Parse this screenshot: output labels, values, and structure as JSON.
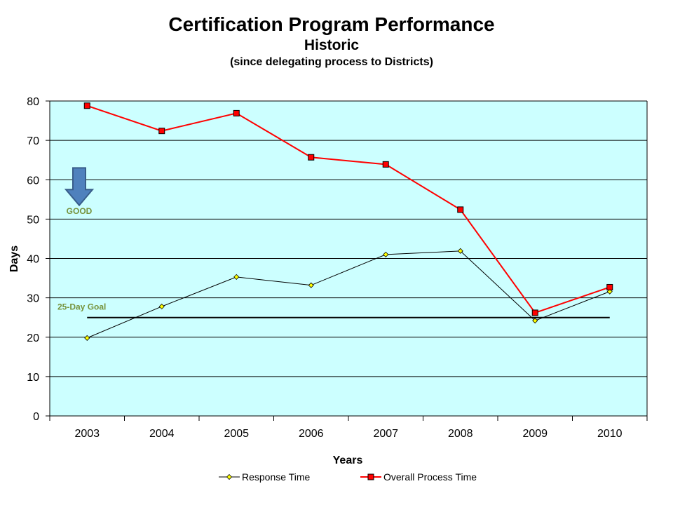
{
  "chart_data": {
    "type": "line",
    "title": "Certification  Program Performance",
    "subtitle": "Historic",
    "subsubtitle": "(since delegating process to Districts)",
    "xlabel": "Years",
    "ylabel": "Days",
    "categories": [
      "2003",
      "2004",
      "2005",
      "2006",
      "2007",
      "2008",
      "2009",
      "2010"
    ],
    "ylim": [
      0,
      80
    ],
    "yticks": [
      0,
      10,
      20,
      30,
      40,
      50,
      60,
      70,
      80
    ],
    "grid": true,
    "legend_position": "bottom",
    "series": [
      {
        "name": "Response Time",
        "values": [
          19.8,
          27.8,
          35.3,
          33.2,
          41.0,
          41.9,
          24.2,
          31.6
        ],
        "color": "#000000",
        "marker": "diamond",
        "marker_color": "#ffff00"
      },
      {
        "name": "Overall Process Time",
        "values": [
          78.8,
          72.4,
          76.9,
          65.7,
          63.9,
          52.4,
          26.2,
          32.7
        ],
        "color": "#ff0000",
        "marker": "square",
        "marker_color": "#ff0000"
      }
    ],
    "goal": {
      "label": "25-Day Goal",
      "value": 25,
      "color": "#000000",
      "label_color": "#76933c"
    },
    "annotation": {
      "label": "GOOD",
      "icon": "down-arrow-icon",
      "arrow_color": "#4f81bd",
      "label_color": "#76933c"
    },
    "plot_background": "#ccffff"
  }
}
